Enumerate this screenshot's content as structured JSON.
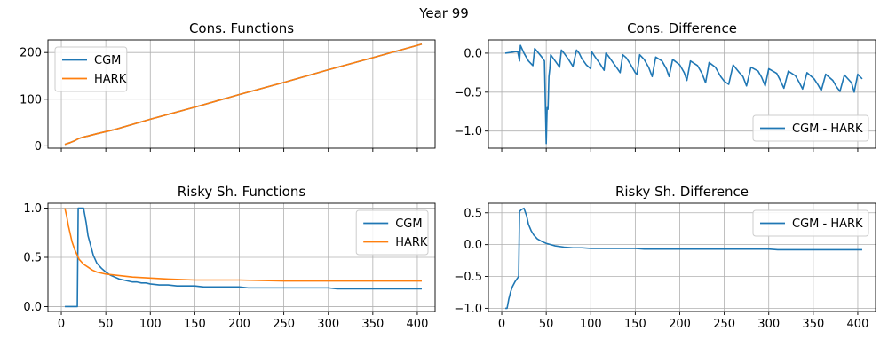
{
  "figure": {
    "suptitle": "Year 99"
  },
  "chart_data": [
    {
      "type": "line",
      "title": "Cons. Functions",
      "xlabel": "",
      "ylabel": "",
      "xlim": [
        -15,
        420
      ],
      "ylim": [
        -5,
        227
      ],
      "xticks": [
        0,
        50,
        100,
        150,
        200,
        250,
        300,
        350,
        400
      ],
      "show_xtick_labels": false,
      "yticks": [
        0,
        100,
        200
      ],
      "ytick_labels": [
        "0",
        "100",
        "200"
      ],
      "grid": true,
      "legend": "upper-left",
      "series": [
        {
          "name": "CGM",
          "color": "#1f77b4",
          "x": [
            4,
            10,
            15,
            20,
            25,
            30,
            40,
            60,
            100,
            150,
            200,
            250,
            300,
            350,
            405
          ],
          "y": [
            3,
            7,
            11,
            16,
            19,
            21,
            26,
            35,
            57,
            83,
            110,
            136,
            163,
            189,
            218
          ]
        },
        {
          "name": "HARK",
          "color": "#ff7f0e",
          "x": [
            4,
            10,
            15,
            20,
            25,
            30,
            40,
            60,
            100,
            150,
            200,
            250,
            300,
            350,
            405
          ],
          "y": [
            3,
            7,
            11,
            16,
            19,
            21,
            26,
            35,
            57,
            83,
            110,
            136,
            163,
            189,
            218
          ]
        }
      ]
    },
    {
      "type": "line",
      "title": "Cons. Difference",
      "xlabel": "",
      "ylabel": "",
      "xlim": [
        -15,
        420
      ],
      "ylim": [
        -1.22,
        0.17
      ],
      "xticks": [
        0,
        50,
        100,
        150,
        200,
        250,
        300,
        350,
        400
      ],
      "show_xtick_labels": false,
      "yticks": [
        0.0,
        -0.5,
        -1.0
      ],
      "ytick_labels": [
        "0.0",
        "−0.5",
        "−1.0"
      ],
      "grid": true,
      "legend": "lower-right",
      "series": [
        {
          "name": "CGM - HARK",
          "color": "#1f77b4",
          "x": [
            4,
            10,
            15,
            18,
            20,
            21,
            25,
            30,
            35,
            37,
            40,
            45,
            48,
            50,
            51,
            52,
            53,
            54,
            55,
            60,
            65,
            67,
            70,
            75,
            80,
            84,
            87,
            90,
            95,
            100,
            101,
            105,
            110,
            115,
            117,
            120,
            125,
            130,
            133,
            136,
            140,
            145,
            150,
            152,
            155,
            160,
            165,
            169,
            173,
            180,
            185,
            188,
            192,
            200,
            205,
            208,
            212,
            220,
            225,
            229,
            233,
            240,
            246,
            250,
            255,
            260,
            267,
            271,
            275,
            280,
            288,
            292,
            296,
            300,
            309,
            313,
            317,
            322,
            330,
            334,
            338,
            343,
            351,
            355,
            359,
            364,
            372,
            376,
            380,
            385,
            393,
            396,
            400,
            405
          ],
          "y": [
            0.0,
            0.01,
            0.02,
            0.02,
            -0.1,
            0.1,
            0.0,
            -0.1,
            -0.16,
            0.06,
            0.02,
            -0.05,
            -0.1,
            -1.16,
            -0.7,
            -0.72,
            -0.3,
            -0.2,
            -0.02,
            -0.1,
            -0.18,
            0.04,
            0.0,
            -0.08,
            -0.17,
            0.04,
            0.0,
            -0.07,
            -0.15,
            -0.2,
            0.02,
            -0.05,
            -0.13,
            -0.22,
            0.0,
            -0.04,
            -0.12,
            -0.2,
            -0.25,
            -0.02,
            -0.06,
            -0.15,
            -0.25,
            -0.27,
            -0.02,
            -0.08,
            -0.18,
            -0.3,
            -0.05,
            -0.1,
            -0.2,
            -0.3,
            -0.08,
            -0.15,
            -0.25,
            -0.35,
            -0.1,
            -0.16,
            -0.26,
            -0.38,
            -0.12,
            -0.18,
            -0.3,
            -0.36,
            -0.4,
            -0.15,
            -0.25,
            -0.3,
            -0.42,
            -0.18,
            -0.23,
            -0.31,
            -0.42,
            -0.2,
            -0.26,
            -0.35,
            -0.45,
            -0.23,
            -0.29,
            -0.37,
            -0.46,
            -0.25,
            -0.33,
            -0.4,
            -0.48,
            -0.27,
            -0.35,
            -0.43,
            -0.49,
            -0.28,
            -0.38,
            -0.5,
            -0.27,
            -0.33
          ]
        }
      ]
    },
    {
      "type": "line",
      "title": "Risky Sh. Functions",
      "xlabel": "",
      "ylabel": "",
      "xlim": [
        -15,
        420
      ],
      "ylim": [
        -0.05,
        1.05
      ],
      "xticks": [
        0,
        50,
        100,
        150,
        200,
        250,
        300,
        350,
        400
      ],
      "xtick_labels": [
        "0",
        "50",
        "100",
        "150",
        "200",
        "250",
        "300",
        "350",
        "400"
      ],
      "show_xtick_labels": true,
      "yticks": [
        0.0,
        0.5,
        1.0
      ],
      "ytick_labels": [
        "0.0",
        "0.5",
        "1.0"
      ],
      "grid": true,
      "legend": "upper-right",
      "series": [
        {
          "name": "CGM",
          "color": "#1f77b4",
          "x": [
            4,
            8,
            12,
            18,
            19,
            20,
            21,
            25,
            26,
            28,
            30,
            33,
            36,
            40,
            45,
            50,
            55,
            60,
            65,
            70,
            75,
            80,
            85,
            90,
            95,
            100,
            110,
            120,
            130,
            150,
            160,
            180,
            200,
            210,
            240,
            260,
            280,
            300,
            310,
            330,
            350,
            380,
            405
          ],
          "y": [
            0.0,
            0.0,
            0.0,
            0.0,
            1.0,
            1.0,
            1.0,
            1.0,
            0.95,
            0.85,
            0.72,
            0.62,
            0.52,
            0.44,
            0.39,
            0.35,
            0.32,
            0.3,
            0.28,
            0.27,
            0.26,
            0.25,
            0.25,
            0.24,
            0.24,
            0.23,
            0.22,
            0.22,
            0.21,
            0.21,
            0.2,
            0.2,
            0.2,
            0.19,
            0.19,
            0.19,
            0.19,
            0.19,
            0.18,
            0.18,
            0.18,
            0.18,
            0.18
          ]
        },
        {
          "name": "HARK",
          "color": "#ff7f0e",
          "x": [
            4,
            6,
            8,
            10,
            12,
            15,
            18,
            20,
            25,
            30,
            35,
            40,
            45,
            50,
            60,
            70,
            80,
            100,
            120,
            150,
            200,
            250,
            300,
            350,
            405
          ],
          "y": [
            1.0,
            0.92,
            0.82,
            0.74,
            0.66,
            0.58,
            0.52,
            0.48,
            0.43,
            0.4,
            0.37,
            0.35,
            0.34,
            0.33,
            0.32,
            0.31,
            0.3,
            0.29,
            0.28,
            0.27,
            0.27,
            0.26,
            0.26,
            0.26,
            0.26
          ]
        }
      ]
    },
    {
      "type": "line",
      "title": "Risky Sh. Difference",
      "xlabel": "",
      "ylabel": "",
      "xlim": [
        -15,
        420
      ],
      "ylim": [
        -1.05,
        0.65
      ],
      "xticks": [
        0,
        50,
        100,
        150,
        200,
        250,
        300,
        350,
        400
      ],
      "xtick_labels": [
        "0",
        "50",
        "100",
        "150",
        "200",
        "250",
        "300",
        "350",
        "400"
      ],
      "show_xtick_labels": true,
      "yticks": [
        0.5,
        0.0,
        -0.5,
        -1.0
      ],
      "ytick_labels": [
        "0.5",
        "0.0",
        "−0.5",
        "−1.0"
      ],
      "grid": true,
      "legend": "upper-right",
      "series": [
        {
          "name": "CGM - HARK",
          "color": "#1f77b4",
          "x": [
            4,
            6,
            8,
            10,
            12,
            15,
            18,
            19,
            20,
            22,
            25,
            28,
            30,
            33,
            36,
            40,
            45,
            50,
            55,
            60,
            70,
            80,
            90,
            100,
            110,
            130,
            150,
            160,
            200,
            210,
            250,
            300,
            310,
            350,
            405
          ],
          "y": [
            -1.0,
            -1.0,
            -0.85,
            -0.74,
            -0.66,
            -0.58,
            -0.52,
            -0.5,
            0.52,
            0.55,
            0.57,
            0.45,
            0.32,
            0.22,
            0.15,
            0.09,
            0.05,
            0.02,
            0.0,
            -0.02,
            -0.04,
            -0.05,
            -0.05,
            -0.06,
            -0.06,
            -0.06,
            -0.06,
            -0.07,
            -0.07,
            -0.07,
            -0.07,
            -0.07,
            -0.08,
            -0.08,
            -0.08
          ]
        }
      ]
    }
  ]
}
